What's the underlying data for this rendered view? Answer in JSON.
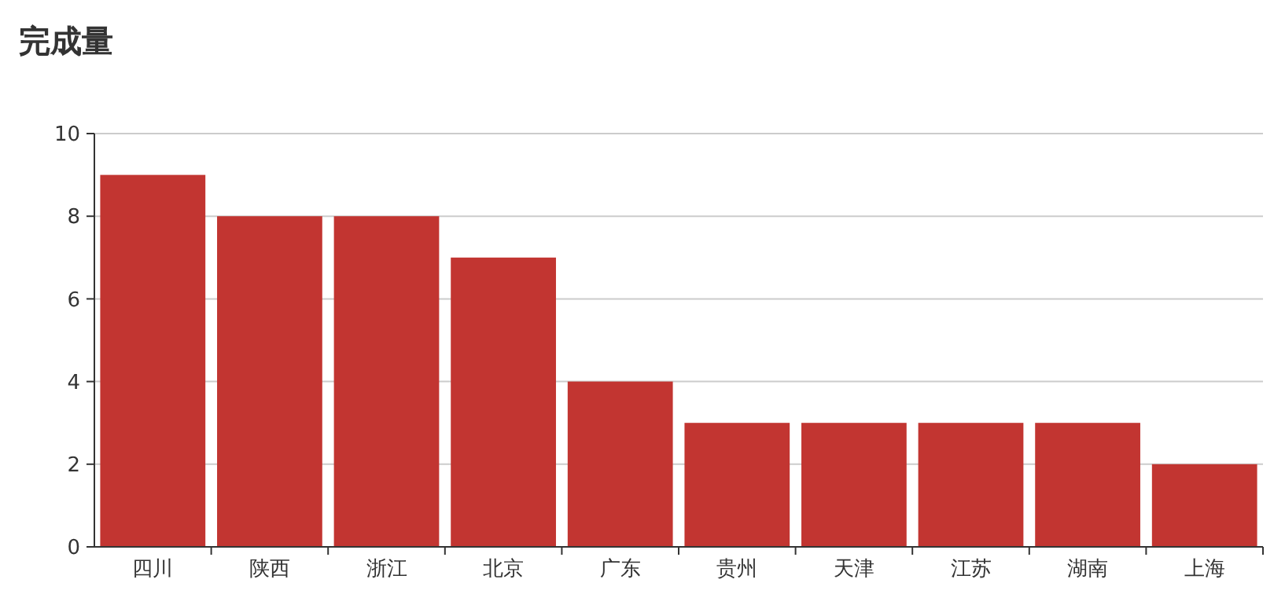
{
  "chart_data": {
    "type": "bar",
    "title": "完成量",
    "categories": [
      "四川",
      "陕西",
      "浙江",
      "北京",
      "广东",
      "贵州",
      "天津",
      "江苏",
      "湖南",
      "上海"
    ],
    "values": [
      9,
      8,
      8,
      7,
      4,
      3,
      3,
      3,
      3,
      2
    ],
    "color": "#c23531",
    "ylim": [
      0,
      10
    ],
    "yticks": [
      0,
      2,
      4,
      6,
      8,
      10
    ],
    "grid": "y"
  }
}
